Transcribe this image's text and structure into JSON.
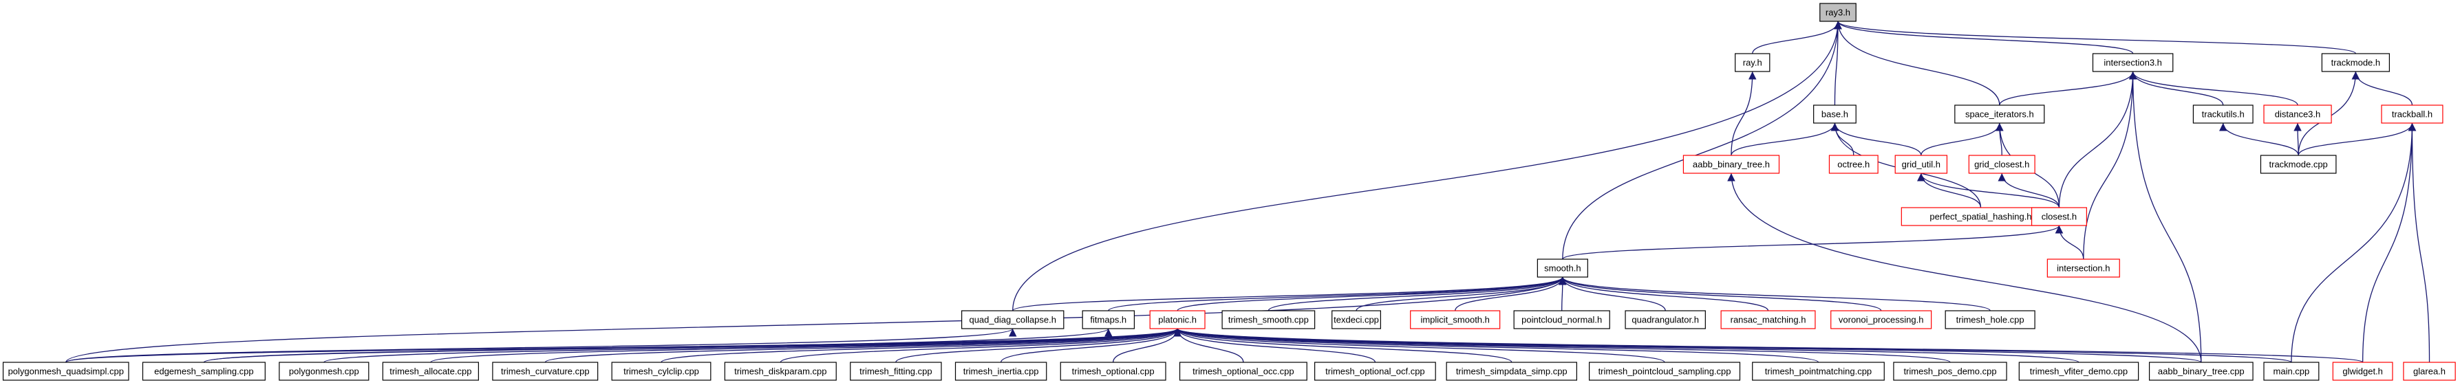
{
  "nodes": [
    {
      "label": "ray3.h"
    },
    {
      "label": "ray.h"
    },
    {
      "label": "intersection3.h"
    },
    {
      "label": "trackmode.h"
    },
    {
      "label": "base.h"
    },
    {
      "label": "space_iterators.h"
    },
    {
      "label": "trackutils.h"
    },
    {
      "label": "distance3.h"
    },
    {
      "label": "trackball.h"
    },
    {
      "label": "aabb_binary_tree.h"
    },
    {
      "label": "octree.h"
    },
    {
      "label": "grid_util.h"
    },
    {
      "label": "grid_closest.h"
    },
    {
      "label": "trackmode.cpp"
    },
    {
      "label": "perfect_spatial_hashing.h"
    },
    {
      "label": "closest.h"
    },
    {
      "label": "smooth.h"
    },
    {
      "label": "intersection.h"
    },
    {
      "label": "quad_diag_collapse.h"
    },
    {
      "label": "fitmaps.h"
    },
    {
      "label": "platonic.h"
    },
    {
      "label": "trimesh_smooth.cpp"
    },
    {
      "label": "texdeci.cpp"
    },
    {
      "label": "implicit_smooth.h"
    },
    {
      "label": "pointcloud_normal.h"
    },
    {
      "label": "quadrangulator.h"
    },
    {
      "label": "ransac_matching.h"
    },
    {
      "label": "voronoi_processing.h"
    },
    {
      "label": "trimesh_hole.cpp"
    },
    {
      "label": "polygonmesh_quadsimpl.cpp"
    },
    {
      "label": "edgemesh_sampling.cpp"
    },
    {
      "label": "polygonmesh.cpp"
    },
    {
      "label": "trimesh_allocate.cpp"
    },
    {
      "label": "trimesh_curvature.cpp"
    },
    {
      "label": "trimesh_cylclip.cpp"
    },
    {
      "label": "trimesh_diskparam.cpp"
    },
    {
      "label": "trimesh_fitting.cpp"
    },
    {
      "label": "trimesh_inertia.cpp"
    },
    {
      "label": "trimesh_optional.cpp"
    },
    {
      "label": "trimesh_optional_occ.cpp"
    },
    {
      "label": "trimesh_optional_ocf.cpp"
    },
    {
      "label": "trimesh_simpdata_simp.cpp"
    },
    {
      "label": "trimesh_pointcloud_sampling.cpp"
    },
    {
      "label": "trimesh_pointmatching.cpp"
    },
    {
      "label": "trimesh_pos_demo.cpp"
    },
    {
      "label": "trimesh_vfiter_demo.cpp"
    },
    {
      "label": "aabb_binary_tree.cpp"
    },
    {
      "label": "main.cpp"
    },
    {
      "label": "glwidget.h"
    },
    {
      "label": "glarea.h"
    }
  ]
}
